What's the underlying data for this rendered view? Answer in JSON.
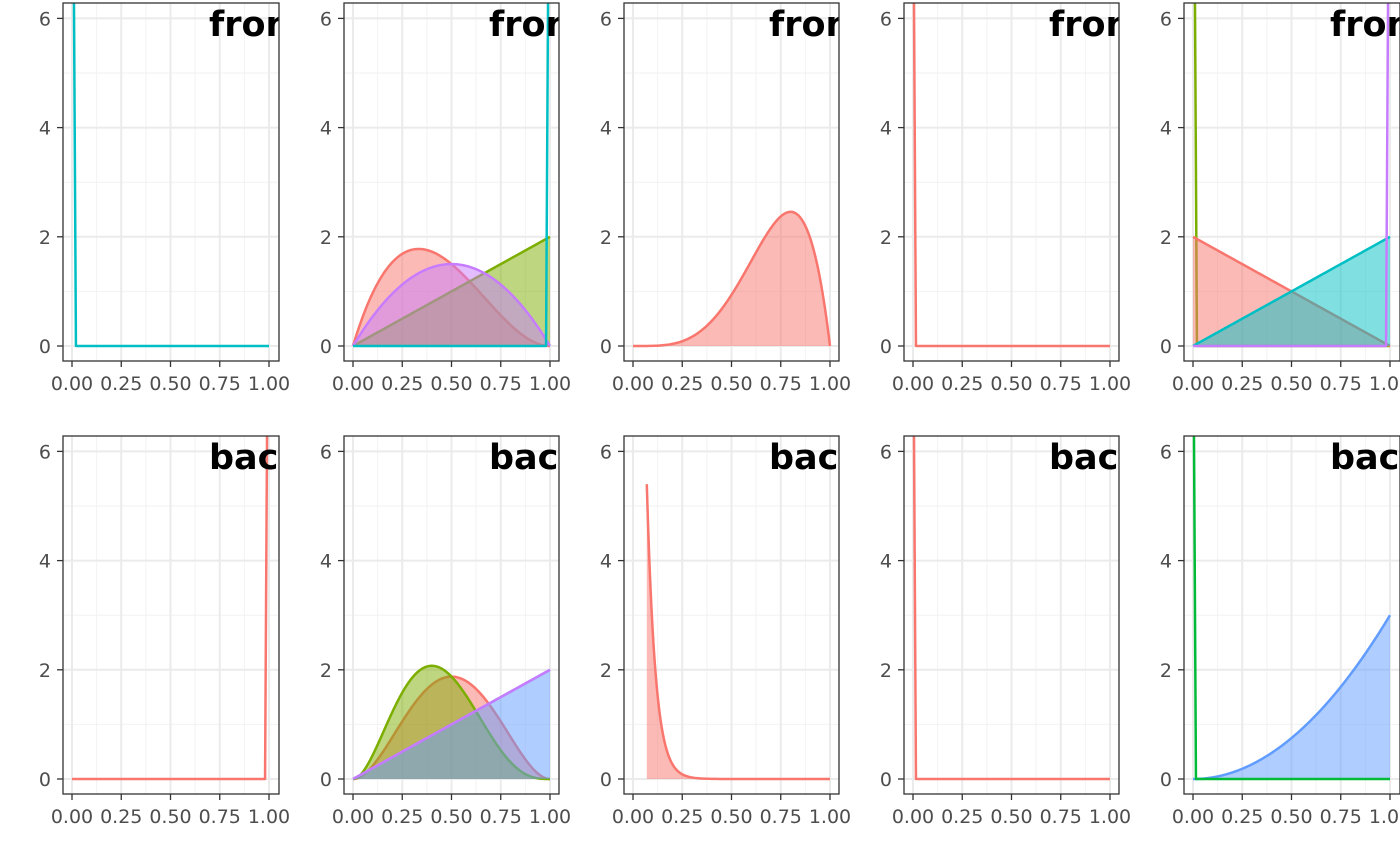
{
  "chart_data": {
    "type": "area",
    "layout": {
      "rows": 2,
      "cols": 5
    },
    "xlim": [
      0,
      1
    ],
    "ylim": [
      0,
      6
    ],
    "x_ticks": [
      0,
      0.25,
      0.5,
      0.75,
      1
    ],
    "x_tick_labels": [
      "0.00",
      "0.25",
      "0.50",
      "0.75",
      "1.00"
    ],
    "y_ticks": [
      0,
      2,
      4,
      6
    ],
    "y_tick_labels": [
      "0",
      "2",
      "4",
      "6"
    ],
    "grid": true,
    "colors": {
      "red": "#F8766D",
      "olive": "#7CAE00",
      "teal": "#00BFC4",
      "purple": "#C77CFF",
      "green": "#00BA38",
      "blue": "#619CFF"
    },
    "panels": [
      {
        "title": "front",
        "series": [
          {
            "color": "#00BFC4",
            "fill": false,
            "x": [
              0,
              0.01,
              0.02,
              1
            ],
            "y": [
              6.3,
              6.3,
              0,
              0
            ]
          }
        ]
      },
      {
        "title": "front",
        "series": [
          {
            "color": "#F8766D",
            "fill": true,
            "fn": "12*x*(1-x)^2"
          },
          {
            "color": "#7CAE00",
            "fill": true,
            "fn": "2*x"
          },
          {
            "color": "#C77CFF",
            "fill": true,
            "fn": "6*x*(1-x)"
          },
          {
            "color": "#00BFC4",
            "fill": false,
            "x": [
              0,
              0.98,
              0.99,
              1
            ],
            "y": [
              0,
              0,
              6.3,
              6.3
            ]
          }
        ]
      },
      {
        "title": "front",
        "series": [
          {
            "color": "#F8766D",
            "fill": true,
            "fn": "30*x^4*(1-x)"
          }
        ]
      },
      {
        "title": "front",
        "series": [
          {
            "color": "#F8766D",
            "fill": false,
            "x": [
              0,
              0.005,
              0.015,
              1
            ],
            "y": [
              6.3,
              6.3,
              0,
              0
            ]
          }
        ]
      },
      {
        "title": "front",
        "series": [
          {
            "color": "#7CAE00",
            "fill": false,
            "x": [
              0,
              0.01,
              0.02,
              1
            ],
            "y": [
              6.3,
              6.3,
              0,
              0
            ]
          },
          {
            "color": "#F8766D",
            "fill": true,
            "fn": "2*(1-x)"
          },
          {
            "color": "#00BFC4",
            "fill": true,
            "fn": "2*x"
          },
          {
            "color": "#C77CFF",
            "fill": false,
            "x": [
              0,
              0.98,
              0.99,
              1
            ],
            "y": [
              0,
              0,
              6.3,
              6.3
            ]
          }
        ]
      },
      {
        "title": "back",
        "series": [
          {
            "color": "#F8766D",
            "fill": false,
            "x": [
              0,
              0.98,
              0.99,
              1
            ],
            "y": [
              0,
              0,
              6.3,
              6.3
            ]
          }
        ]
      },
      {
        "title": "back",
        "series": [
          {
            "color": "#F8766D",
            "fill": true,
            "fn": "30*x^2*(1-x)^2"
          },
          {
            "color": "#7CAE00",
            "fill": true,
            "fn": "60*x^2*(1-x)^3"
          },
          {
            "color": "#619CFF",
            "fill": true,
            "fn": "2*x"
          },
          {
            "color": "#C77CFF",
            "fill": false,
            "fn": "2*x"
          }
        ]
      },
      {
        "title": "back",
        "series": [
          {
            "color": "#F8766D",
            "fill": true,
            "fn": "truncexp",
            "x_start": 0.07,
            "y_start": 5.4
          }
        ]
      },
      {
        "title": "back",
        "series": [
          {
            "color": "#F8766D",
            "fill": false,
            "x": [
              0,
              0.005,
              0.015,
              1
            ],
            "y": [
              6.3,
              6.3,
              0,
              0
            ]
          }
        ]
      },
      {
        "title": "back",
        "series": [
          {
            "color": "#619CFF",
            "fill": true,
            "fn": "3*x^2"
          },
          {
            "color": "#00BA38",
            "fill": false,
            "x": [
              0,
              0.005,
              0.015,
              1
            ],
            "y": [
              6.3,
              6.3,
              0,
              0
            ]
          }
        ]
      }
    ]
  }
}
